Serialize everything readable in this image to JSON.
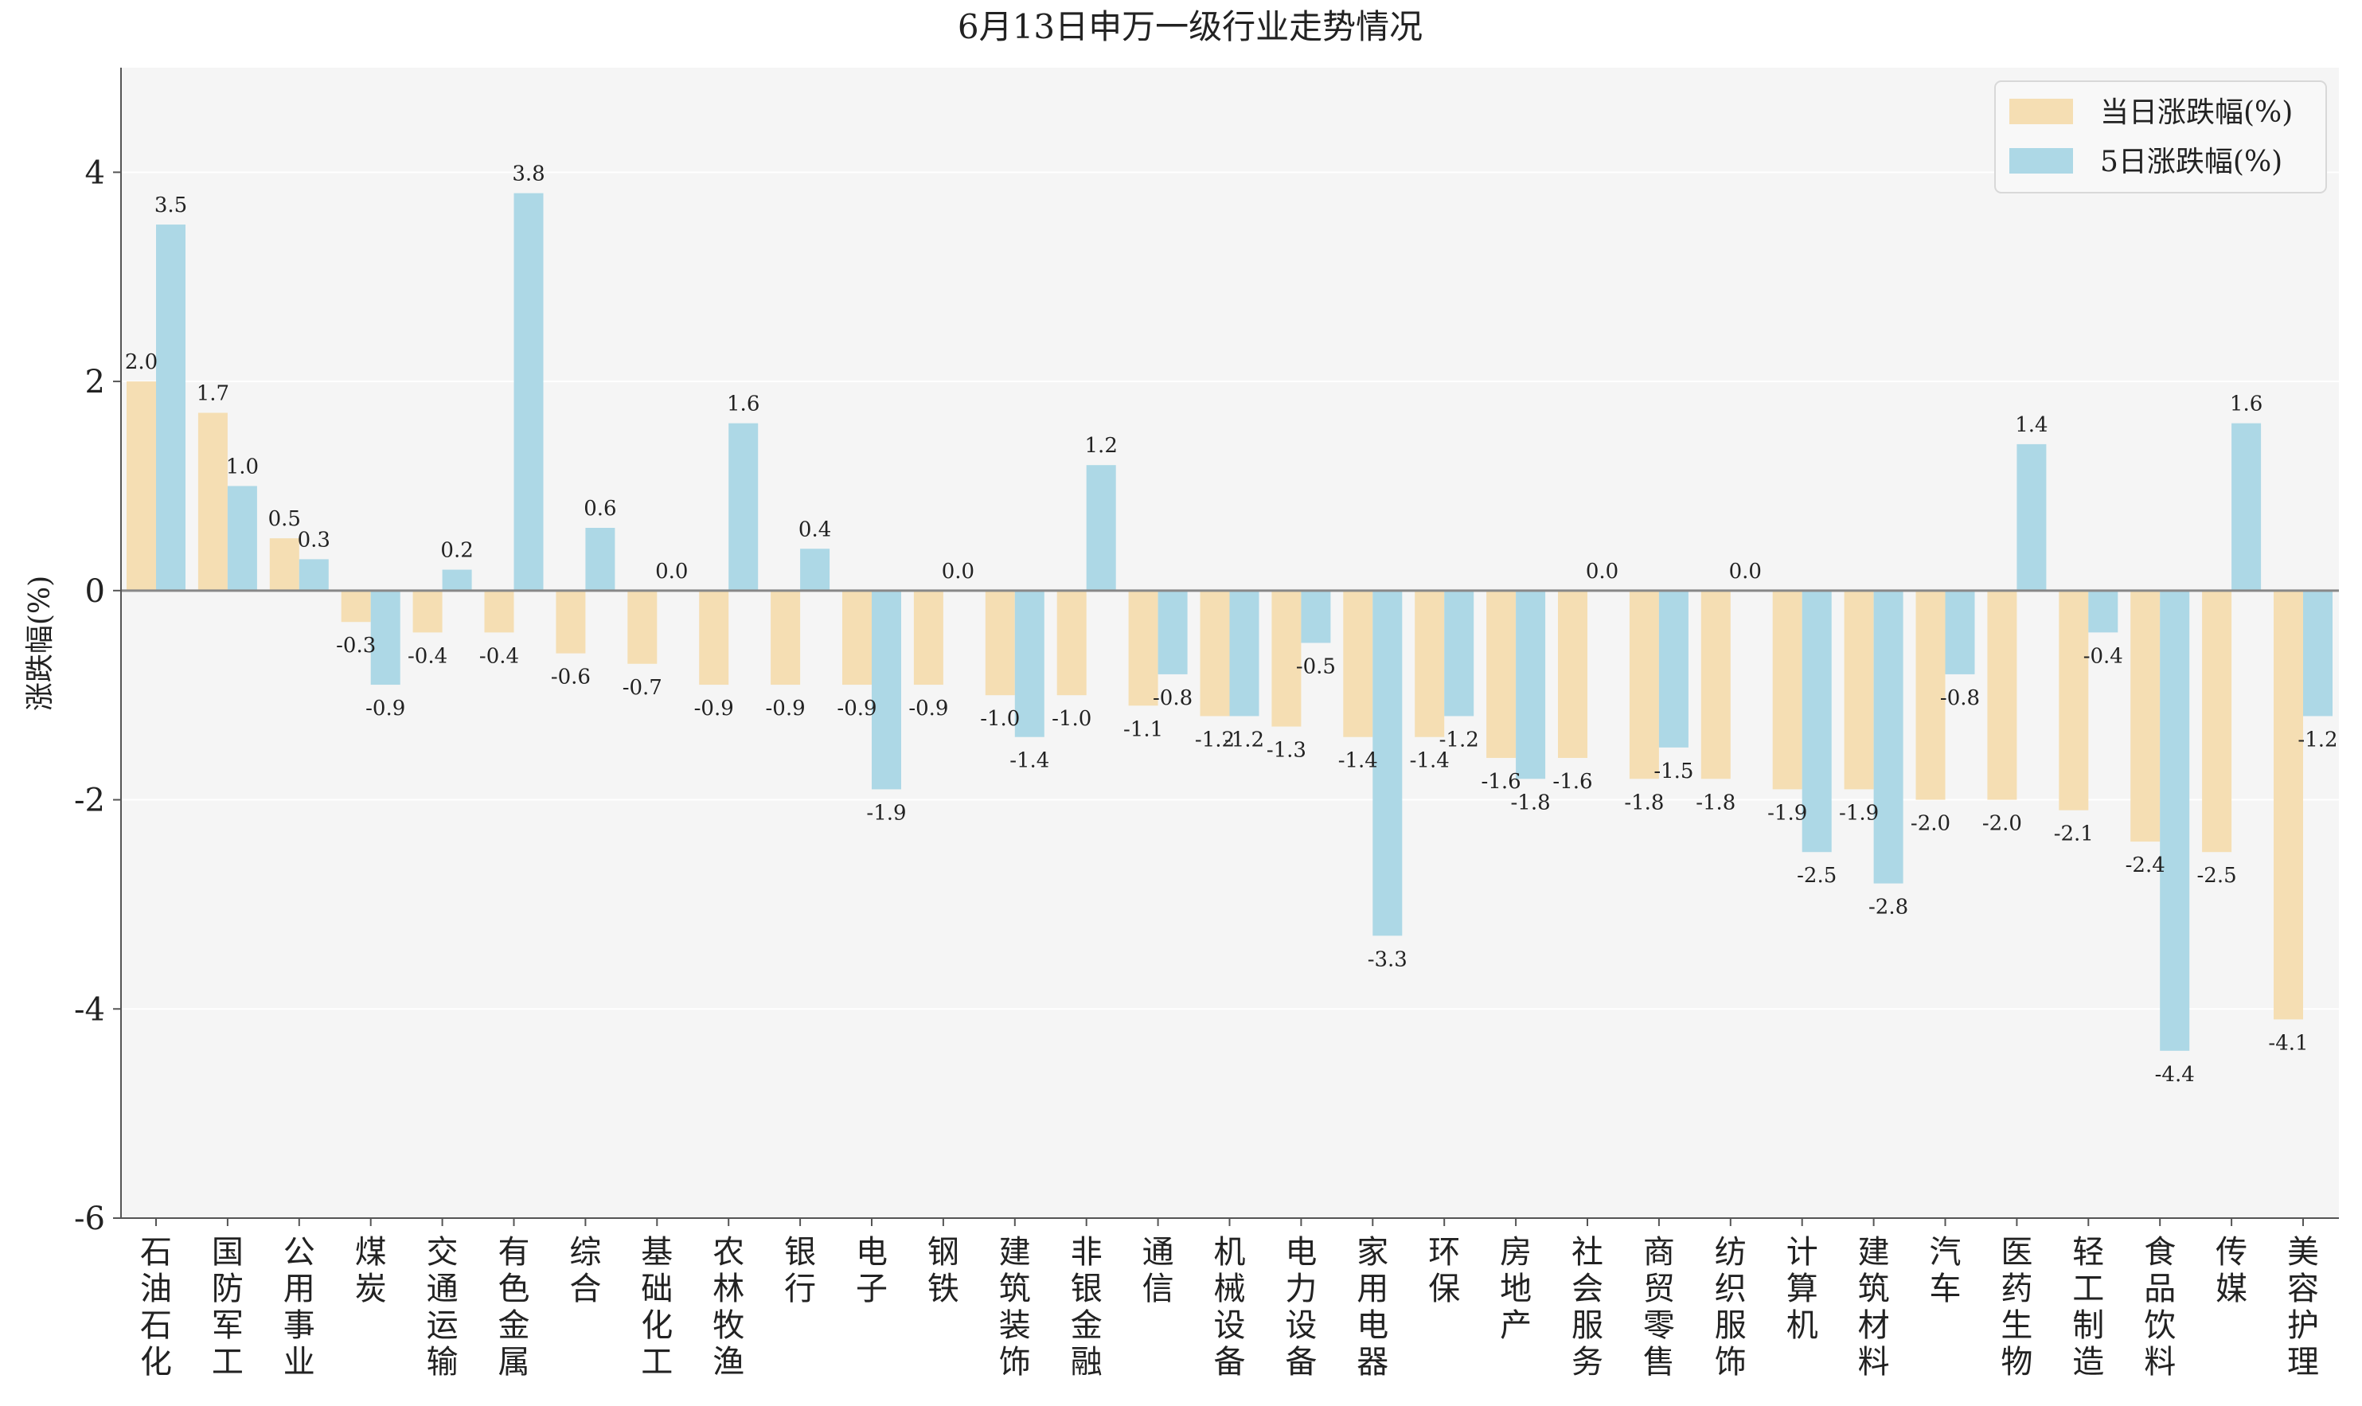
{
  "chart_data": {
    "type": "bar",
    "title": "6月13日申万一级行业走势情况",
    "ylabel": "涨跌幅(%)",
    "xlabel": "",
    "ylim": [
      -6,
      5
    ],
    "yticks": [
      4,
      2,
      0,
      -2,
      -4,
      -6
    ],
    "grid": true,
    "legend_position": "top-right",
    "categories": [
      "石油石化",
      "国防军工",
      "公用事业",
      "煤炭",
      "交通运输",
      "有色金属",
      "综合",
      "基础化工",
      "农林牧渔",
      "银行",
      "电子",
      "钢铁",
      "建筑装饰",
      "非银金融",
      "通信",
      "机械设备",
      "电力设备",
      "家用电器",
      "环保",
      "房地产",
      "社会服务",
      "商贸零售",
      "纺织服饰",
      "计算机",
      "建筑材料",
      "汽车",
      "医药生物",
      "轻工制造",
      "食品饮料",
      "传媒",
      "美容护理"
    ],
    "series": [
      {
        "name": "当日涨跌幅(%)",
        "color": "#f5deb3",
        "values": [
          2.0,
          1.7,
          0.5,
          -0.3,
          -0.4,
          -0.4,
          -0.6,
          -0.7,
          -0.9,
          -0.9,
          -0.9,
          -0.9,
          -1.0,
          -1.0,
          -1.1,
          -1.2,
          -1.3,
          -1.4,
          -1.4,
          -1.6,
          -1.6,
          -1.8,
          -1.8,
          -1.9,
          -1.9,
          -2.0,
          -2.0,
          -2.1,
          -2.4,
          -2.5,
          -4.1
        ]
      },
      {
        "name": "5日涨跌幅(%)",
        "color": "#add8e6",
        "values": [
          3.5,
          1.0,
          0.3,
          -0.9,
          0.2,
          3.8,
          0.6,
          0.0,
          1.6,
          0.4,
          -1.9,
          0.0,
          -1.4,
          1.2,
          -0.8,
          -1.2,
          -0.5,
          -3.3,
          -1.2,
          -1.8,
          0.0,
          -1.5,
          0.0,
          -2.5,
          -2.8,
          -0.8,
          1.4,
          -0.4,
          -4.4,
          1.6,
          -1.2
        ]
      }
    ]
  },
  "colors": {
    "plot_background": "#f5f5f5",
    "grid": "#ffffff",
    "axis": "#555555",
    "zero_line": "#888888"
  }
}
